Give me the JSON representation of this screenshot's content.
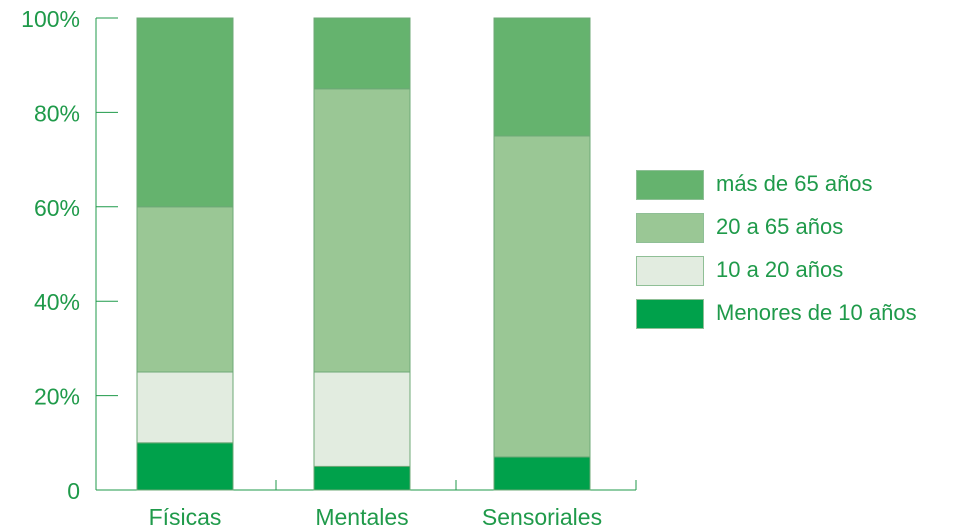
{
  "colors": {
    "axis": "#1f9a4a",
    "text": "#1f9a4a",
    "segment_border": "#6da876"
  },
  "chart_data": {
    "type": "bar",
    "stacked": true,
    "categories": [
      "Físicas",
      "Mentales",
      "Sensoriales"
    ],
    "y_ticks": [
      "0",
      "20%",
      "40%",
      "60%",
      "80%",
      "100%"
    ],
    "ylim": [
      0,
      100
    ],
    "legend_position": "right",
    "series": [
      {
        "name": "Menores de 10 años",
        "color": "#00a14b",
        "values": [
          10,
          5,
          7
        ]
      },
      {
        "name": "10 a 20 años",
        "color": "#e2ece0",
        "values": [
          15,
          20,
          0
        ]
      },
      {
        "name": "20 a 65 años",
        "color": "#9ac795",
        "values": [
          35,
          60,
          68
        ]
      },
      {
        "name": "más de 65 años",
        "color": "#65b36e",
        "values": [
          40,
          15,
          25
        ]
      }
    ],
    "legend_order": [
      "más de 65 años",
      "20 a 65 años",
      "10 a 20 años",
      "Menores de 10 años"
    ]
  }
}
